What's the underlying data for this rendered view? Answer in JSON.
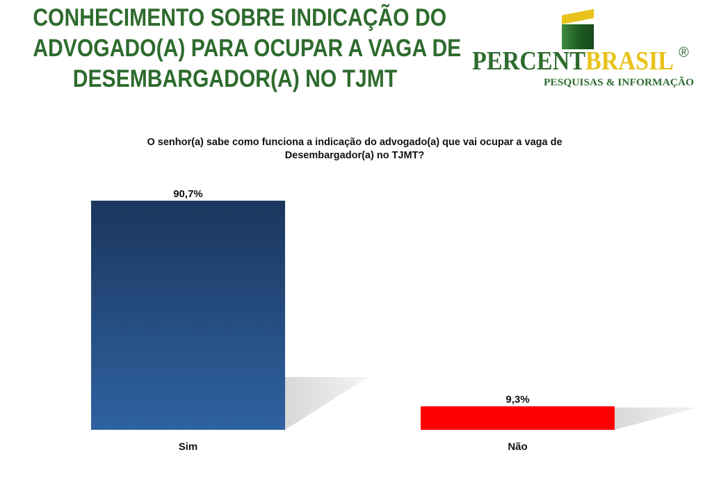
{
  "header": {
    "title_lines": [
      "CONHECIMENTO SOBRE INDICAÇÃO DO",
      "ADVOGADO(A) PARA OCUPAR A VAGA DE",
      "DESEMBARGADOR(A) NO TJMT"
    ]
  },
  "logo": {
    "word_part1": "PERCENT",
    "word_part2": "BRASIL",
    "registered": "®",
    "tagline": "PESQUISAS & INFORMAÇÃO",
    "colors": {
      "green": "#2e6b2e",
      "yellow": "#e8c21a"
    }
  },
  "chart_data": {
    "type": "bar",
    "title": "O senhor(a) sabe como funciona a indicação do advogado(a) que vai ocupar a vaga de Desembargador(a) no TJMT?",
    "title_lines": [
      "O senhor(a) sabe como funciona a indicação do advogado(a) que vai ocupar a vaga de",
      "Desembargador(a) no TJMT?"
    ],
    "categories": [
      "Sim",
      "Não"
    ],
    "values": [
      90.7,
      9.3
    ],
    "value_labels": [
      "90,7%",
      "9,3%"
    ],
    "colors": [
      "#2a5a94",
      "#ff0000"
    ],
    "ylim": [
      0,
      100
    ],
    "grid": false,
    "legend": "none"
  }
}
